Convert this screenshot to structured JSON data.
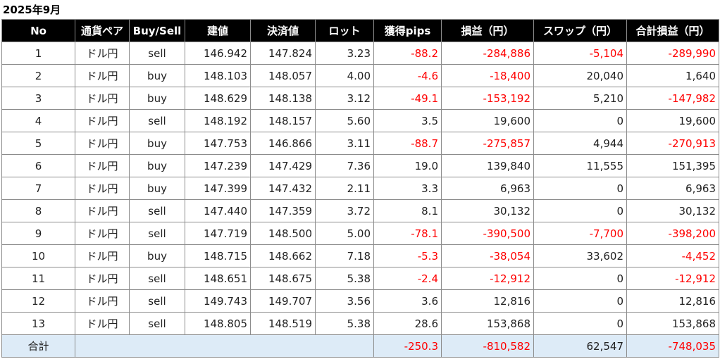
{
  "title": "2025年9月",
  "colors": {
    "header_bg": "#000000",
    "header_text": "#ffffff",
    "negative": "#ff0000",
    "total_bg": "#ddebf7",
    "grid": "#8c8c8c"
  },
  "columns": [
    "No",
    "通貨ペア",
    "Buy/Sell",
    "建値",
    "決済値",
    "ロット",
    "獲得pips",
    "損益（円）",
    "スワップ（円）",
    "合計損益（円）"
  ],
  "rows": [
    {
      "no": "1",
      "pair": "ドル円",
      "side": "sell",
      "entry": "146.942",
      "exit": "147.824",
      "lot": "3.23",
      "pips": "-88.2",
      "pl": "-284,886",
      "swap": "-5,104",
      "total": "-289,990"
    },
    {
      "no": "2",
      "pair": "ドル円",
      "side": "buy",
      "entry": "148.103",
      "exit": "148.057",
      "lot": "4.00",
      "pips": "-4.6",
      "pl": "-18,400",
      "swap": "20,040",
      "total": "1,640"
    },
    {
      "no": "3",
      "pair": "ドル円",
      "side": "buy",
      "entry": "148.629",
      "exit": "148.138",
      "lot": "3.12",
      "pips": "-49.1",
      "pl": "-153,192",
      "swap": "5,210",
      "total": "-147,982"
    },
    {
      "no": "4",
      "pair": "ドル円",
      "side": "sell",
      "entry": "148.192",
      "exit": "148.157",
      "lot": "5.60",
      "pips": "3.5",
      "pl": "19,600",
      "swap": "0",
      "total": "19,600"
    },
    {
      "no": "5",
      "pair": "ドル円",
      "side": "buy",
      "entry": "147.753",
      "exit": "146.866",
      "lot": "3.11",
      "pips": "-88.7",
      "pl": "-275,857",
      "swap": "4,944",
      "total": "-270,913"
    },
    {
      "no": "6",
      "pair": "ドル円",
      "side": "buy",
      "entry": "147.239",
      "exit": "147.429",
      "lot": "7.36",
      "pips": "19.0",
      "pl": "139,840",
      "swap": "11,555",
      "total": "151,395"
    },
    {
      "no": "7",
      "pair": "ドル円",
      "side": "buy",
      "entry": "147.399",
      "exit": "147.432",
      "lot": "2.11",
      "pips": "3.3",
      "pl": "6,963",
      "swap": "0",
      "total": "6,963"
    },
    {
      "no": "8",
      "pair": "ドル円",
      "side": "sell",
      "entry": "147.440",
      "exit": "147.359",
      "lot": "3.72",
      "pips": "8.1",
      "pl": "30,132",
      "swap": "0",
      "total": "30,132"
    },
    {
      "no": "9",
      "pair": "ドル円",
      "side": "sell",
      "entry": "147.719",
      "exit": "148.500",
      "lot": "5.00",
      "pips": "-78.1",
      "pl": "-390,500",
      "swap": "-7,700",
      "total": "-398,200"
    },
    {
      "no": "10",
      "pair": "ドル円",
      "side": "buy",
      "entry": "148.715",
      "exit": "148.662",
      "lot": "7.18",
      "pips": "-5.3",
      "pl": "-38,054",
      "swap": "33,602",
      "total": "-4,452"
    },
    {
      "no": "11",
      "pair": "ドル円",
      "side": "sell",
      "entry": "148.651",
      "exit": "148.675",
      "lot": "5.38",
      "pips": "-2.4",
      "pl": "-12,912",
      "swap": "0",
      "total": "-12,912"
    },
    {
      "no": "12",
      "pair": "ドル円",
      "side": "sell",
      "entry": "149.743",
      "exit": "149.707",
      "lot": "3.56",
      "pips": "3.6",
      "pl": "12,816",
      "swap": "0",
      "total": "12,816"
    },
    {
      "no": "13",
      "pair": "ドル円",
      "side": "sell",
      "entry": "148.805",
      "exit": "148.519",
      "lot": "5.38",
      "pips": "28.6",
      "pl": "153,868",
      "swap": "0",
      "total": "153,868"
    }
  ],
  "totals": {
    "label": "合計",
    "pips": "-250.3",
    "pl": "-810,582",
    "swap": "62,547",
    "total": "-748,035"
  }
}
